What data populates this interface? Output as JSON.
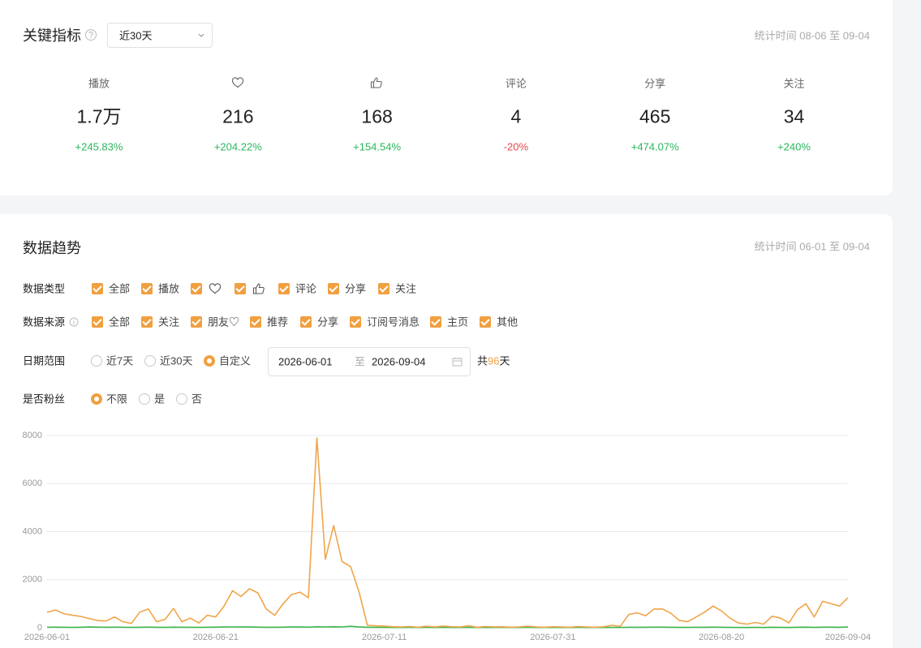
{
  "metrics_card": {
    "title": "关键指标",
    "range_select": "近30天",
    "stat_time": "统计时间 08-06 至 09-04",
    "metrics": [
      {
        "label": "播放",
        "value": "1.7万",
        "change": "+245.83%"
      },
      {
        "value": "216",
        "change": "+204.22%"
      },
      {
        "value": "168",
        "change": "+154.54%"
      },
      {
        "label": "评论",
        "value": "4",
        "change": "-20%"
      },
      {
        "label": "分享",
        "value": "465",
        "change": "+474.07%"
      },
      {
        "label": "关注",
        "value": "34",
        "change": "+240%"
      }
    ]
  },
  "trend_card": {
    "title": "数据趋势",
    "stat_time": "统计时间 06-01 至 09-04",
    "data_type": {
      "label": "数据类型",
      "options": [
        "全部",
        "播放",
        "评论",
        "分享",
        "关注"
      ]
    },
    "data_source": {
      "label": "数据来源",
      "options": [
        "全部",
        "关注",
        "朋友♡",
        "推荐",
        "分享",
        "订阅号消息",
        "主页",
        "其他"
      ]
    },
    "date_range": {
      "label": "日期范围",
      "options": [
        "近7天",
        "近30天",
        "自定义"
      ],
      "selected": 2,
      "start": "2026-06-01",
      "separator": "至",
      "end": "2026-09-04",
      "total_prefix": "共",
      "total_days": "96",
      "total_suffix": "天"
    },
    "fans": {
      "label": "是否粉丝",
      "options": [
        "不限",
        "是",
        "否"
      ],
      "selected": 0
    }
  },
  "chart_data": {
    "type": "line",
    "categories": [
      "2026-06-01",
      null,
      null,
      null,
      null,
      null,
      null,
      null,
      null,
      null,
      null,
      null,
      null,
      null,
      null,
      null,
      null,
      null,
      null,
      null,
      "2026-06-21",
      null,
      null,
      null,
      null,
      null,
      null,
      null,
      null,
      null,
      null,
      null,
      null,
      null,
      null,
      null,
      null,
      null,
      null,
      null,
      "2026-07-11",
      null,
      null,
      null,
      null,
      null,
      null,
      null,
      null,
      null,
      null,
      null,
      null,
      null,
      null,
      null,
      null,
      null,
      null,
      null,
      "2026-07-31",
      null,
      null,
      null,
      null,
      null,
      null,
      null,
      null,
      null,
      null,
      null,
      null,
      null,
      null,
      null,
      null,
      null,
      null,
      null,
      "2026-08-20",
      null,
      null,
      null,
      null,
      null,
      null,
      null,
      null,
      null,
      null,
      null,
      null,
      null,
      null,
      "2026-09-04"
    ],
    "series": [
      {
        "color": "#f0a54a",
        "values": [
          640,
          740,
          580,
          520,
          470,
          380,
          300,
          280,
          450,
          250,
          180,
          650,
          780,
          250,
          350,
          800,
          250,
          400,
          200,
          520,
          450,
          900,
          1540,
          1300,
          1620,
          1450,
          780,
          520,
          1000,
          1380,
          1480,
          1250,
          7900,
          2850,
          4250,
          2750,
          2550,
          1500,
          100,
          80,
          70,
          40,
          30,
          50,
          20,
          60,
          30,
          70,
          40,
          30,
          80,
          20,
          50,
          30,
          40,
          20,
          30,
          60,
          30,
          20,
          40,
          30,
          20,
          50,
          30,
          20,
          40,
          100,
          60,
          550,
          620,
          500,
          780,
          780,
          600,
          300,
          250,
          450,
          650,
          900,
          700,
          400,
          200,
          150,
          220,
          150,
          480,
          400,
          200,
          750,
          1000,
          450,
          1100,
          1000,
          900,
          1250
        ]
      },
      {
        "color": "#3cb54a",
        "values": [
          20,
          25,
          20,
          15,
          20,
          30,
          25,
          20,
          25,
          20,
          15,
          20,
          25,
          20,
          15,
          25,
          20,
          20,
          15,
          20,
          25,
          30,
          35,
          30,
          30,
          25,
          20,
          20,
          25,
          30,
          30,
          25,
          40,
          35,
          40,
          35,
          60,
          30,
          20,
          15,
          15,
          10,
          10,
          15,
          10,
          15,
          10,
          15,
          10,
          10,
          15,
          10,
          10,
          10,
          15,
          10,
          10,
          15,
          10,
          10,
          10,
          10,
          10,
          15,
          10,
          10,
          10,
          15,
          10,
          20,
          20,
          20,
          25,
          25,
          20,
          15,
          15,
          20,
          20,
          25,
          20,
          15,
          10,
          10,
          15,
          10,
          20,
          15,
          10,
          20,
          25,
          15,
          25,
          25,
          20,
          30
        ]
      }
    ],
    "ylim": [
      0,
      8000
    ],
    "yticks": [
      0,
      2000,
      4000,
      6000,
      8000
    ],
    "grid": true
  }
}
